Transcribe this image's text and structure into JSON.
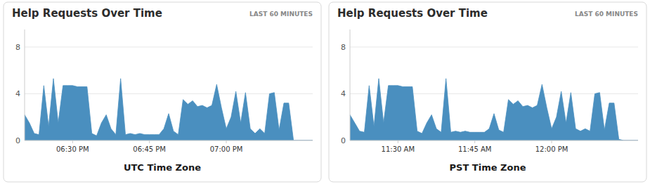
{
  "chart_data": [
    {
      "type": "area",
      "title": "Help Requests Over Time",
      "subtitle": "LAST 60 MINUTES",
      "xlabel": "UTC Time Zone",
      "color": "#4a8fbf",
      "x": [
        0,
        1,
        2,
        3,
        4,
        5,
        6,
        7,
        8,
        9,
        10,
        11,
        12,
        13,
        14,
        15,
        16,
        17,
        18,
        19,
        20,
        21,
        22,
        23,
        24,
        25,
        26,
        27,
        28,
        29,
        30,
        31,
        32,
        33,
        34,
        35,
        36,
        37,
        38,
        39,
        40,
        41,
        42,
        43,
        44,
        45,
        46,
        47,
        48,
        49,
        50,
        51,
        52,
        53,
        54,
        55,
        56,
        57,
        58,
        59,
        60
      ],
      "values": [
        2.2,
        1.5,
        0.6,
        0.5,
        4.7,
        1.2,
        5.3,
        1.5,
        4.7,
        4.7,
        4.7,
        4.6,
        4.6,
        4.6,
        0.6,
        0.4,
        1.5,
        2.2,
        1.0,
        0.5,
        5.3,
        0.5,
        0.6,
        0.5,
        0.6,
        0.5,
        0.5,
        0.5,
        0.5,
        1.0,
        2.3,
        0.8,
        0.5,
        3.5,
        3.1,
        3.4,
        2.9,
        3.0,
        2.8,
        3.0,
        4.8,
        2.8,
        1.0,
        2.0,
        4.2,
        1.5,
        4.1,
        1.0,
        0.6,
        1.0,
        0.6,
        4.0,
        4.1,
        0.9,
        3.2,
        3.2,
        0.0,
        0.0,
        0.0,
        0.0,
        0.0
      ],
      "xlim": [
        0,
        60
      ],
      "xticks": [
        {
          "value": 10,
          "label": "06:30 PM"
        },
        {
          "value": 26,
          "label": "06:45 PM"
        },
        {
          "value": 42,
          "label": "07:00 PM"
        }
      ],
      "ylim": [
        0,
        9.5
      ],
      "yticks": [
        0,
        4,
        8
      ],
      "grid": true
    },
    {
      "type": "area",
      "title": "Help Requests Over Time",
      "subtitle": "LAST 60 MINUTES",
      "xlabel": "PST Time Zone",
      "color": "#4a8fbf",
      "x": [
        0,
        1,
        2,
        3,
        4,
        5,
        6,
        7,
        8,
        9,
        10,
        11,
        12,
        13,
        14,
        15,
        16,
        17,
        18,
        19,
        20,
        21,
        22,
        23,
        24,
        25,
        26,
        27,
        28,
        29,
        30,
        31,
        32,
        33,
        34,
        35,
        36,
        37,
        38,
        39,
        40,
        41,
        42,
        43,
        44,
        45,
        46,
        47,
        48,
        49,
        50,
        51,
        52,
        53,
        54,
        55,
        56,
        57,
        58,
        59,
        60
      ],
      "values": [
        2.2,
        1.5,
        0.8,
        0.7,
        4.7,
        1.2,
        5.3,
        1.5,
        4.7,
        4.7,
        4.7,
        4.6,
        4.6,
        4.6,
        0.8,
        0.6,
        1.5,
        2.2,
        1.0,
        0.7,
        5.3,
        0.7,
        0.8,
        0.7,
        0.8,
        0.7,
        0.7,
        0.7,
        0.7,
        1.0,
        2.3,
        0.9,
        0.7,
        3.5,
        3.1,
        3.4,
        2.9,
        3.0,
        2.8,
        3.0,
        4.8,
        2.8,
        1.0,
        2.0,
        4.2,
        1.5,
        4.1,
        1.0,
        0.8,
        1.0,
        0.8,
        4.0,
        4.1,
        0.9,
        3.2,
        3.2,
        0.1,
        0.0,
        0.0,
        0.0,
        0.0
      ],
      "xlim": [
        0,
        60
      ],
      "xticks": [
        {
          "value": 10,
          "label": "11:30 AM"
        },
        {
          "value": 26,
          "label": "11:45 AM"
        },
        {
          "value": 42,
          "label": "12:00 PM"
        }
      ],
      "ylim": [
        0,
        9.5
      ],
      "yticks": [
        0,
        4,
        8
      ],
      "grid": true
    }
  ]
}
